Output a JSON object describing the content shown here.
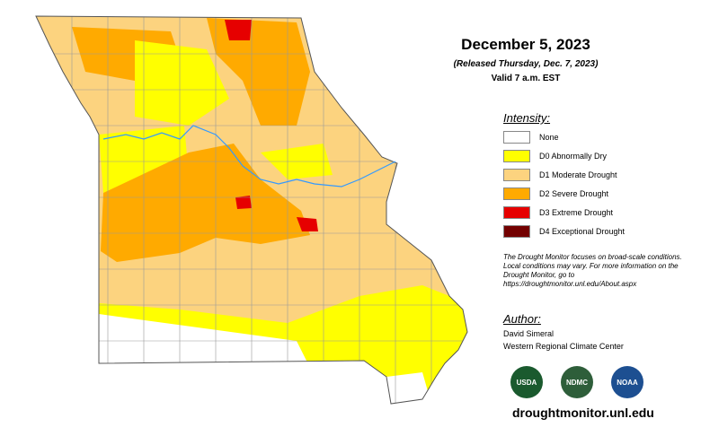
{
  "header": {
    "title": "December 5, 2023",
    "released": "(Released Thursday, Dec. 7, 2023)",
    "valid": "Valid 7 a.m. EST"
  },
  "legend": {
    "title": "Intensity:",
    "items": [
      {
        "label": "None",
        "color": "#ffffff"
      },
      {
        "label": "D0 Abnormally Dry",
        "color": "#ffff00"
      },
      {
        "label": "D1 Moderate Drought",
        "color": "#fcd37f"
      },
      {
        "label": "D2 Severe Drought",
        "color": "#ffaa00"
      },
      {
        "label": "D3 Extreme Drought",
        "color": "#e60000"
      },
      {
        "label": "D4 Exceptional Drought",
        "color": "#730000"
      }
    ]
  },
  "note": "The Drought Monitor focuses on broad-scale conditions. Local conditions may vary. For more information on the Drought Monitor, go to https://droughtmonitor.unl.edu/About.aspx",
  "author": {
    "title": "Author:",
    "name": "David Simeral",
    "org": "Western Regional Climate Center"
  },
  "logos": [
    "USDA",
    "NDMC",
    "NOAA"
  ],
  "footer": "droughtmonitor.unl.edu"
}
